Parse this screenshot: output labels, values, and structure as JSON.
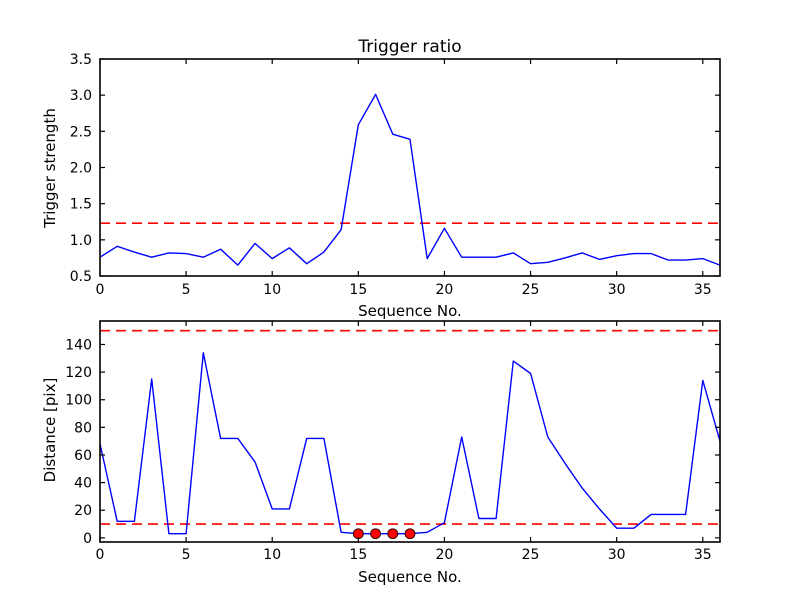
{
  "figure": {
    "title": "Trigger ratio",
    "background": "#ffffff",
    "colors": {
      "series_line": "#0000ff",
      "threshold_line": "#ff0000",
      "marker_fill": "#ff0000",
      "marker_edge": "#000000",
      "axis": "#000000",
      "text": "#000000"
    }
  },
  "chart_data": [
    {
      "type": "line",
      "title": "Trigger ratio",
      "xlabel": "Sequence No.",
      "ylabel": "Trigger strength",
      "xlim": [
        0,
        36
      ],
      "ylim": [
        0.5,
        3.5
      ],
      "grid": false,
      "xticks": {
        "values": [
          0,
          5,
          10,
          15,
          20,
          25,
          30,
          35
        ],
        "labels": [
          "0",
          "5",
          "10",
          "15",
          "20",
          "25",
          "30",
          "35"
        ]
      },
      "yticks": {
        "values": [
          0.5,
          1.0,
          1.5,
          2.0,
          2.5,
          3.0,
          3.5
        ],
        "labels": [
          "0.5",
          "1.0",
          "1.5",
          "2.0",
          "2.5",
          "3.0",
          "3.5"
        ]
      },
      "thresholds": [
        1.23
      ],
      "x": [
        0,
        1,
        2,
        3,
        4,
        5,
        6,
        7,
        8,
        9,
        10,
        11,
        12,
        13,
        14,
        15,
        16,
        17,
        18,
        19,
        20,
        21,
        22,
        23,
        24,
        25,
        26,
        27,
        28,
        29,
        30,
        31,
        32,
        33,
        34,
        35,
        36
      ],
      "y": [
        0.76,
        0.91,
        0.83,
        0.76,
        0.82,
        0.81,
        0.76,
        0.87,
        0.65,
        0.95,
        0.74,
        0.89,
        0.67,
        0.83,
        1.14,
        2.59,
        3.01,
        2.46,
        2.39,
        0.74,
        1.16,
        0.76,
        0.76,
        0.76,
        0.82,
        0.67,
        0.69,
        0.75,
        0.82,
        0.73,
        0.78,
        0.81,
        0.81,
        0.72,
        0.72,
        0.74,
        0.65
      ],
      "markers": {
        "x": [],
        "y": []
      }
    },
    {
      "type": "line",
      "title": "",
      "xlabel": "Sequence No.",
      "ylabel": "Distance [pix]",
      "xlim": [
        0,
        36
      ],
      "ylim": [
        -3,
        157
      ],
      "grid": false,
      "xticks": {
        "values": [
          0,
          5,
          10,
          15,
          20,
          25,
          30,
          35
        ],
        "labels": [
          "0",
          "5",
          "10",
          "15",
          "20",
          "25",
          "30",
          "35"
        ]
      },
      "yticks": {
        "values": [
          0,
          20,
          40,
          60,
          80,
          100,
          120,
          140
        ],
        "labels": [
          "0",
          "20",
          "40",
          "60",
          "80",
          "100",
          "120",
          "140"
        ]
      },
      "thresholds": [
        150,
        10
      ],
      "x": [
        0,
        1,
        2,
        3,
        4,
        5,
        6,
        7,
        8,
        9,
        10,
        11,
        12,
        13,
        14,
        15,
        16,
        17,
        18,
        19,
        20,
        21,
        22,
        23,
        24,
        25,
        26,
        27,
        28,
        29,
        30,
        31,
        32,
        33,
        34,
        35,
        36
      ],
      "y": [
        68,
        12,
        12,
        115,
        3,
        3,
        134,
        72,
        72,
        55,
        21,
        21,
        72,
        72,
        4,
        3,
        3,
        3,
        3,
        4,
        11,
        73,
        14,
        14,
        128,
        119,
        73,
        54,
        36,
        21,
        7,
        7,
        17,
        17,
        17,
        114,
        70
      ],
      "markers": {
        "x": [
          15,
          16,
          17,
          18
        ],
        "y": [
          3,
          3,
          3,
          3
        ]
      }
    }
  ]
}
